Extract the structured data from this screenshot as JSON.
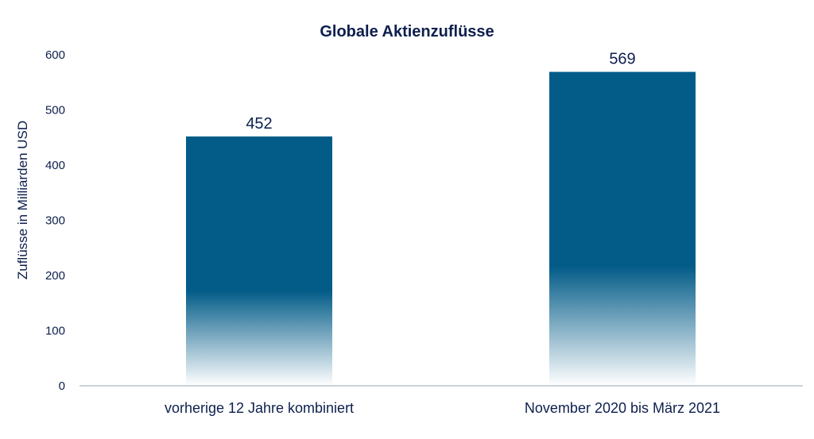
{
  "colors": {
    "bar": "#035c88",
    "text": "#0d1f4d",
    "axis": "#9aa3b0"
  },
  "chart_data": {
    "type": "bar",
    "title": "Globale Aktienzuflüsse",
    "xlabel": "",
    "ylabel": "Zuflüsse in Milliarden USD",
    "categories": [
      "vorherige 12 Jahre kombiniert",
      "November 2020 bis März 2021"
    ],
    "values": [
      452,
      569
    ],
    "value_labels": [
      "452",
      "569"
    ],
    "ylim": [
      0,
      600
    ],
    "yticks": [
      "0",
      "100",
      "200",
      "300",
      "400",
      "500",
      "600"
    ],
    "grid": false,
    "bar_fill": "gradient fading to white at base"
  }
}
